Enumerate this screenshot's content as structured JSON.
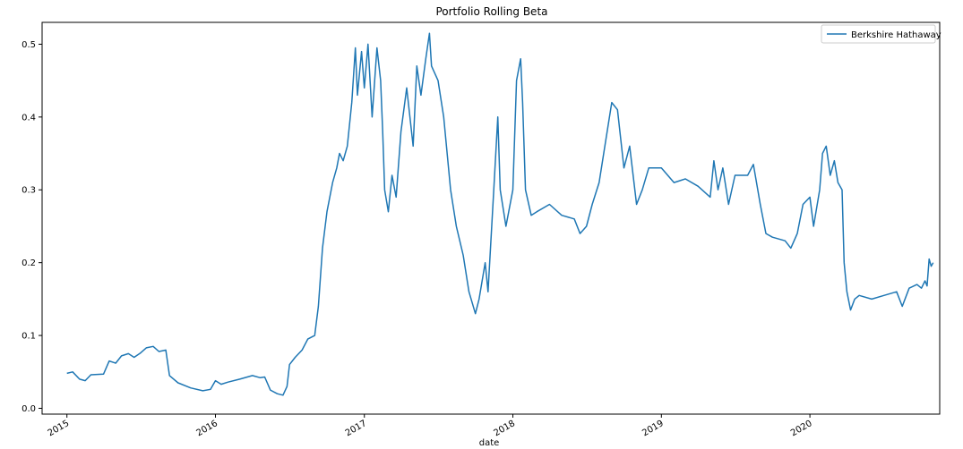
{
  "chart_data": {
    "type": "line",
    "title": "Portfolio Rolling Beta",
    "xlabel": "date",
    "ylabel": "",
    "xlim": [
      "2014-11-01",
      "2020-11-15"
    ],
    "ylim": [
      -0.008,
      0.53
    ],
    "yticks": [
      0.0,
      0.1,
      0.2,
      0.3,
      0.4,
      0.5
    ],
    "ytick_labels": [
      "0.0",
      "0.1",
      "0.2",
      "0.3",
      "0.4",
      "0.5"
    ],
    "xticks": [
      "2015-01-01",
      "2016-01-01",
      "2017-01-01",
      "2018-01-01",
      "2019-01-01",
      "2020-01-01"
    ],
    "xtick_labels": [
      "2015",
      "2016",
      "2017",
      "2018",
      "2019",
      "2020"
    ],
    "grid": false,
    "legend": "top-right",
    "colors": {
      "series": "#1f77b4"
    },
    "series": [
      {
        "name": "Berkshire Hathaway",
        "points": [
          [
            "2015-01-01",
            0.048
          ],
          [
            "2015-01-15",
            0.05
          ],
          [
            "2015-02-01",
            0.04
          ],
          [
            "2015-02-15",
            0.038
          ],
          [
            "2015-03-01",
            0.046
          ],
          [
            "2015-04-01",
            0.047
          ],
          [
            "2015-04-15",
            0.065
          ],
          [
            "2015-05-01",
            0.062
          ],
          [
            "2015-05-15",
            0.072
          ],
          [
            "2015-06-01",
            0.075
          ],
          [
            "2015-06-15",
            0.07
          ],
          [
            "2015-07-01",
            0.076
          ],
          [
            "2015-07-15",
            0.083
          ],
          [
            "2015-08-01",
            0.085
          ],
          [
            "2015-08-15",
            0.078
          ],
          [
            "2015-09-01",
            0.08
          ],
          [
            "2015-09-10",
            0.045
          ],
          [
            "2015-10-01",
            0.035
          ],
          [
            "2015-11-01",
            0.028
          ],
          [
            "2015-12-01",
            0.024
          ],
          [
            "2015-12-20",
            0.026
          ],
          [
            "2016-01-01",
            0.038
          ],
          [
            "2016-01-15",
            0.033
          ],
          [
            "2016-02-01",
            0.036
          ],
          [
            "2016-03-01",
            0.04
          ],
          [
            "2016-04-01",
            0.045
          ],
          [
            "2016-04-20",
            0.042
          ],
          [
            "2016-05-01",
            0.043
          ],
          [
            "2016-05-15",
            0.025
          ],
          [
            "2016-06-01",
            0.02
          ],
          [
            "2016-06-15",
            0.018
          ],
          [
            "2016-06-25",
            0.03
          ],
          [
            "2016-07-01",
            0.06
          ],
          [
            "2016-07-15",
            0.07
          ],
          [
            "2016-08-01",
            0.08
          ],
          [
            "2016-08-15",
            0.095
          ],
          [
            "2016-09-01",
            0.1
          ],
          [
            "2016-09-10",
            0.14
          ],
          [
            "2016-09-20",
            0.22
          ],
          [
            "2016-10-01",
            0.27
          ],
          [
            "2016-10-15",
            0.31
          ],
          [
            "2016-10-25",
            0.33
          ],
          [
            "2016-11-01",
            0.35
          ],
          [
            "2016-11-10",
            0.34
          ],
          [
            "2016-11-20",
            0.36
          ],
          [
            "2016-12-01",
            0.42
          ],
          [
            "2016-12-10",
            0.495
          ],
          [
            "2016-12-15",
            0.43
          ],
          [
            "2016-12-25",
            0.49
          ],
          [
            "2017-01-01",
            0.44
          ],
          [
            "2017-01-10",
            0.5
          ],
          [
            "2017-01-20",
            0.4
          ],
          [
            "2017-02-01",
            0.495
          ],
          [
            "2017-02-10",
            0.45
          ],
          [
            "2017-02-15",
            0.38
          ],
          [
            "2017-02-20",
            0.3
          ],
          [
            "2017-03-01",
            0.27
          ],
          [
            "2017-03-10",
            0.32
          ],
          [
            "2017-03-20",
            0.29
          ],
          [
            "2017-04-01",
            0.38
          ],
          [
            "2017-04-15",
            0.44
          ],
          [
            "2017-05-01",
            0.36
          ],
          [
            "2017-05-10",
            0.47
          ],
          [
            "2017-05-20",
            0.43
          ],
          [
            "2017-06-01",
            0.48
          ],
          [
            "2017-06-10",
            0.515
          ],
          [
            "2017-06-15",
            0.47
          ],
          [
            "2017-07-01",
            0.45
          ],
          [
            "2017-07-15",
            0.4
          ],
          [
            "2017-08-01",
            0.3
          ],
          [
            "2017-08-15",
            0.25
          ],
          [
            "2017-09-01",
            0.21
          ],
          [
            "2017-09-15",
            0.16
          ],
          [
            "2017-10-01",
            0.13
          ],
          [
            "2017-10-10",
            0.15
          ],
          [
            "2017-10-25",
            0.2
          ],
          [
            "2017-11-01",
            0.16
          ],
          [
            "2017-11-15",
            0.3
          ],
          [
            "2017-11-25",
            0.4
          ],
          [
            "2017-12-01",
            0.3
          ],
          [
            "2017-12-15",
            0.25
          ],
          [
            "2018-01-01",
            0.3
          ],
          [
            "2018-01-10",
            0.45
          ],
          [
            "2018-01-20",
            0.48
          ],
          [
            "2018-01-25",
            0.42
          ],
          [
            "2018-02-01",
            0.3
          ],
          [
            "2018-02-15",
            0.265
          ],
          [
            "2018-03-01",
            0.27
          ],
          [
            "2018-04-01",
            0.28
          ],
          [
            "2018-05-01",
            0.265
          ],
          [
            "2018-06-01",
            0.26
          ],
          [
            "2018-06-15",
            0.24
          ],
          [
            "2018-07-01",
            0.25
          ],
          [
            "2018-07-15",
            0.28
          ],
          [
            "2018-08-01",
            0.31
          ],
          [
            "2018-08-15",
            0.36
          ],
          [
            "2018-09-01",
            0.42
          ],
          [
            "2018-09-15",
            0.41
          ],
          [
            "2018-10-01",
            0.33
          ],
          [
            "2018-10-15",
            0.36
          ],
          [
            "2018-11-01",
            0.28
          ],
          [
            "2018-11-15",
            0.3
          ],
          [
            "2018-12-01",
            0.33
          ],
          [
            "2019-01-01",
            0.33
          ],
          [
            "2019-02-01",
            0.31
          ],
          [
            "2019-03-01",
            0.315
          ],
          [
            "2019-04-01",
            0.305
          ],
          [
            "2019-05-01",
            0.29
          ],
          [
            "2019-05-10",
            0.34
          ],
          [
            "2019-05-20",
            0.3
          ],
          [
            "2019-06-01",
            0.33
          ],
          [
            "2019-06-15",
            0.28
          ],
          [
            "2019-07-01",
            0.32
          ],
          [
            "2019-08-01",
            0.32
          ],
          [
            "2019-08-15",
            0.335
          ],
          [
            "2019-09-01",
            0.28
          ],
          [
            "2019-09-15",
            0.24
          ],
          [
            "2019-10-01",
            0.235
          ],
          [
            "2019-11-01",
            0.23
          ],
          [
            "2019-11-15",
            0.22
          ],
          [
            "2019-12-01",
            0.24
          ],
          [
            "2019-12-15",
            0.28
          ],
          [
            "2020-01-01",
            0.29
          ],
          [
            "2020-01-10",
            0.25
          ],
          [
            "2020-01-25",
            0.3
          ],
          [
            "2020-02-01",
            0.35
          ],
          [
            "2020-02-10",
            0.36
          ],
          [
            "2020-02-20",
            0.32
          ],
          [
            "2020-03-01",
            0.34
          ],
          [
            "2020-03-10",
            0.31
          ],
          [
            "2020-03-20",
            0.3
          ],
          [
            "2020-03-25",
            0.2
          ],
          [
            "2020-04-01",
            0.16
          ],
          [
            "2020-04-10",
            0.135
          ],
          [
            "2020-04-20",
            0.15
          ],
          [
            "2020-05-01",
            0.155
          ],
          [
            "2020-06-01",
            0.15
          ],
          [
            "2020-07-01",
            0.155
          ],
          [
            "2020-08-01",
            0.16
          ],
          [
            "2020-08-15",
            0.14
          ],
          [
            "2020-09-01",
            0.165
          ],
          [
            "2020-09-20",
            0.17
          ],
          [
            "2020-10-01",
            0.165
          ],
          [
            "2020-10-10",
            0.175
          ],
          [
            "2020-10-15",
            0.168
          ],
          [
            "2020-10-20",
            0.205
          ],
          [
            "2020-10-25",
            0.195
          ],
          [
            "2020-10-30",
            0.2
          ]
        ]
      }
    ]
  }
}
